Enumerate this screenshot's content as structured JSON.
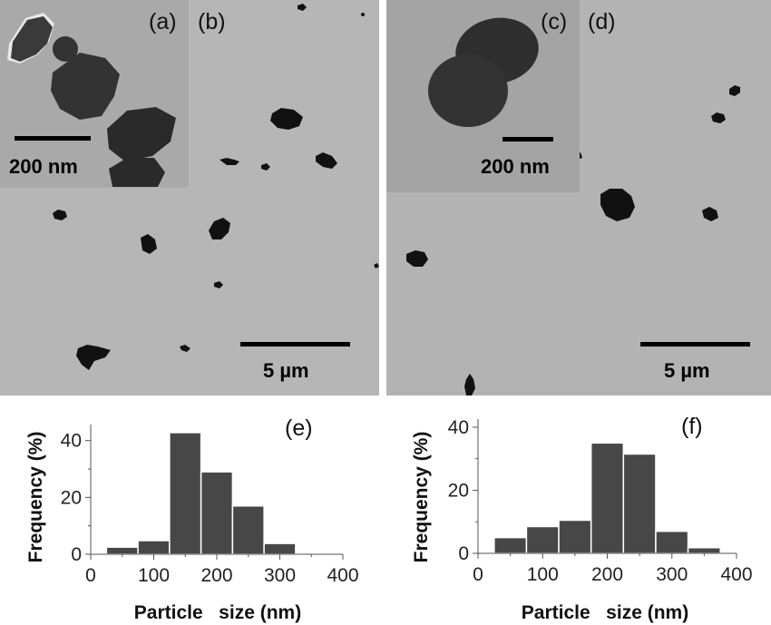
{
  "micrographs": {
    "left": {
      "inset_label": "(a)",
      "main_label": "(b)",
      "inset_scale": "200 nm",
      "main_scale": "5 µm"
    },
    "right": {
      "inset_label": "(c)",
      "main_label": "(d)",
      "inset_scale": "200 nm",
      "main_scale": "5 µm"
    }
  },
  "colors": {
    "bar": "#474747",
    "particle": "#111111"
  },
  "chart_data": [
    {
      "type": "bar",
      "panel_label": "(e)",
      "xlabel": "Particle   size (nm)",
      "ylabel": "Frequency (%)",
      "xlim": [
        0,
        400
      ],
      "ylim": [
        0,
        45
      ],
      "xticks": [
        "0",
        "100",
        "200",
        "300",
        "400"
      ],
      "yticks": [
        "0",
        "20",
        "40"
      ],
      "bins": [
        {
          "start": 25,
          "end": 75,
          "value": 2.5
        },
        {
          "start": 75,
          "end": 125,
          "value": 4.8
        },
        {
          "start": 125,
          "end": 175,
          "value": 42.8
        },
        {
          "start": 175,
          "end": 225,
          "value": 29.0
        },
        {
          "start": 225,
          "end": 275,
          "value": 17.0
        },
        {
          "start": 275,
          "end": 325,
          "value": 3.8
        }
      ]
    },
    {
      "type": "bar",
      "panel_label": "(f)",
      "xlabel": "Particle   size (nm)",
      "ylabel": "Frequency (%)",
      "xlim": [
        0,
        400
      ],
      "ylim": [
        0,
        42
      ],
      "xticks": [
        "0",
        "100",
        "200",
        "300",
        "400"
      ],
      "yticks": [
        "0",
        "20",
        "40"
      ],
      "bins": [
        {
          "start": 25,
          "end": 75,
          "value": 5.0
        },
        {
          "start": 75,
          "end": 125,
          "value": 8.5
        },
        {
          "start": 125,
          "end": 175,
          "value": 10.5
        },
        {
          "start": 175,
          "end": 225,
          "value": 35.0
        },
        {
          "start": 225,
          "end": 275,
          "value": 31.5
        },
        {
          "start": 275,
          "end": 325,
          "value": 7.0
        },
        {
          "start": 325,
          "end": 375,
          "value": 1.8
        }
      ]
    }
  ]
}
